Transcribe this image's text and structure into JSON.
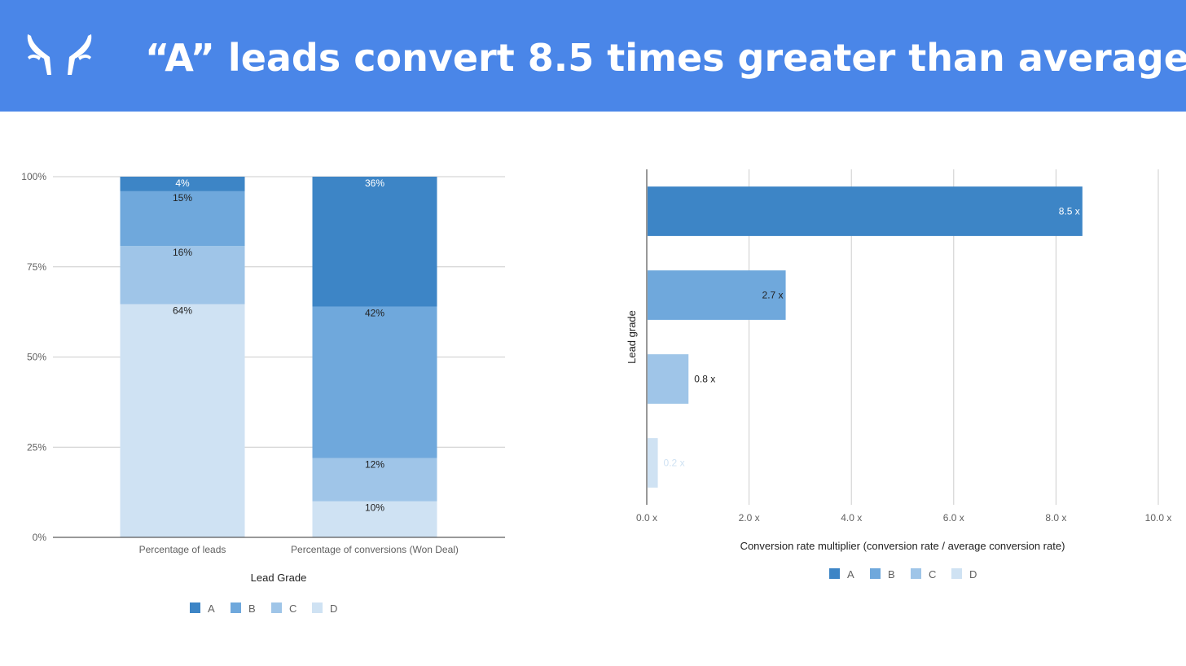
{
  "slide": {
    "title": "“A” leads convert 8.5 times greater than average",
    "logo_icon": "antler-logo-icon",
    "header_color": "#4a86e8"
  },
  "chart_data": [
    {
      "type": "bar",
      "stacked": true,
      "normalized": true,
      "categories": [
        "Percentage of leads",
        "Percentage of conversions (Won Deal)"
      ],
      "series": [
        {
          "name": "A",
          "color": "#3d85c6",
          "values": [
            4,
            36
          ],
          "labels": [
            "4%",
            "36%"
          ]
        },
        {
          "name": "B",
          "color": "#6fa8dc",
          "values": [
            15,
            42
          ],
          "labels": [
            "15%",
            "42%"
          ]
        },
        {
          "name": "C",
          "color": "#9fc5e8",
          "values": [
            16,
            12
          ],
          "labels": [
            "16%",
            "12%"
          ]
        },
        {
          "name": "D",
          "color": "#cfe2f3",
          "values": [
            64,
            10
          ],
          "labels": [
            "64%",
            "10%"
          ]
        }
      ],
      "stack_order_bottom_to_top": [
        "D",
        "C",
        "B",
        "A"
      ],
      "xlabel": "Lead Grade",
      "ylabel": "",
      "ylim": [
        0,
        100
      ],
      "yticks": [
        {
          "value": 0,
          "label": "0%"
        },
        {
          "value": 25,
          "label": "25%"
        },
        {
          "value": 50,
          "label": "50%"
        },
        {
          "value": 75,
          "label": "75%"
        },
        {
          "value": 100,
          "label": "100%"
        }
      ],
      "grid": true,
      "legend": "bottom"
    },
    {
      "type": "bar",
      "orientation": "horizontal",
      "categories": [
        "A",
        "B",
        "C",
        "D"
      ],
      "values": [
        8.5,
        2.7,
        0.8,
        0.2
      ],
      "labels": [
        "8.5 x",
        "2.7 x",
        "0.8 x",
        "0.2 x"
      ],
      "colors": [
        "#3d85c6",
        "#6fa8dc",
        "#9fc5e8",
        "#cfe2f3"
      ],
      "series": [
        {
          "name": "A",
          "color": "#3d85c6"
        },
        {
          "name": "B",
          "color": "#6fa8dc"
        },
        {
          "name": "C",
          "color": "#9fc5e8"
        },
        {
          "name": "D",
          "color": "#cfe2f3"
        }
      ],
      "xlabel": "Conversion rate multiplier (conversion rate / average conversion rate)",
      "ylabel": "Lead grade",
      "xlim": [
        0,
        10
      ],
      "xticks": [
        {
          "value": 0,
          "label": "0.0 x"
        },
        {
          "value": 2,
          "label": "2.0 x"
        },
        {
          "value": 4,
          "label": "4.0 x"
        },
        {
          "value": 6,
          "label": "6.0 x"
        },
        {
          "value": 8,
          "label": "8.0 x"
        },
        {
          "value": 10,
          "label": "10.0 x"
        }
      ],
      "grid": true,
      "legend": "bottom"
    }
  ]
}
